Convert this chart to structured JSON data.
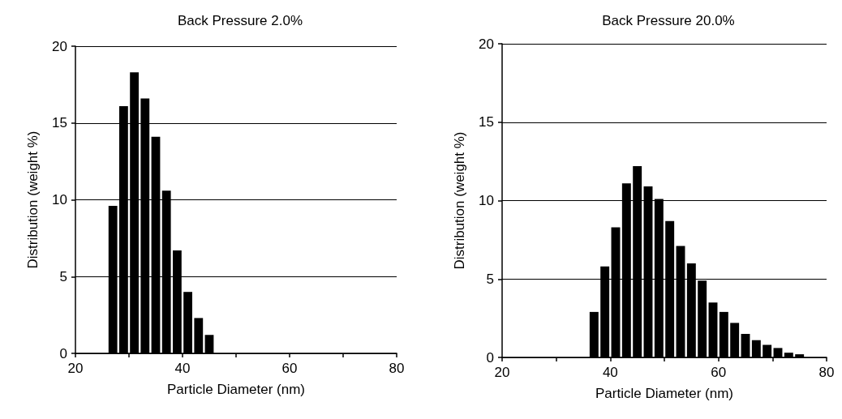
{
  "chart_data": [
    {
      "type": "histogram",
      "title": "Back Pressure 2.0%",
      "xlabel": "Particle Diameter (nm)",
      "ylabel": "Distribution (weight %)",
      "color": "#000000",
      "bins": [
        26,
        28,
        30,
        32,
        34,
        36,
        38,
        40,
        42,
        44,
        46
      ],
      "values": [
        9.6,
        16.1,
        18.3,
        16.6,
        14.1,
        10.6,
        6.7,
        4.0,
        2.3,
        1.2
      ],
      "xlim": [
        20,
        80
      ],
      "xticks": [
        20,
        {
          "value": 30,
          "label": null
        },
        40,
        {
          "value": 50,
          "label": null
        },
        60,
        {
          "value": 70,
          "label": null
        },
        80
      ],
      "ylim": [
        0,
        20
      ],
      "yticks": [
        0,
        5,
        10,
        15,
        20
      ],
      "grid": "y"
    },
    {
      "type": "histogram",
      "title": "Back Pressure 20.0%",
      "xlabel": "Particle Diameter (nm)",
      "ylabel": "Distribution (weight %)",
      "color": "#000000",
      "bins": [
        36,
        38,
        40,
        42,
        44,
        46,
        48,
        50,
        52,
        54,
        56,
        58,
        60,
        62,
        64,
        66,
        68,
        70,
        72,
        74,
        76
      ],
      "values": [
        2.9,
        5.8,
        8.3,
        11.1,
        12.2,
        10.9,
        10.1,
        8.7,
        7.1,
        6.0,
        4.9,
        3.5,
        2.9,
        2.2,
        1.5,
        1.1,
        0.8,
        0.6,
        0.3,
        0.2
      ],
      "xlim": [
        20,
        80
      ],
      "xticks": [
        20,
        {
          "value": 30,
          "label": null
        },
        40,
        {
          "value": 50,
          "label": null
        },
        60,
        {
          "value": 70,
          "label": null
        },
        80
      ],
      "ylim": [
        0,
        20
      ],
      "yticks": [
        0,
        5,
        10,
        15,
        20
      ],
      "grid": "y"
    }
  ]
}
